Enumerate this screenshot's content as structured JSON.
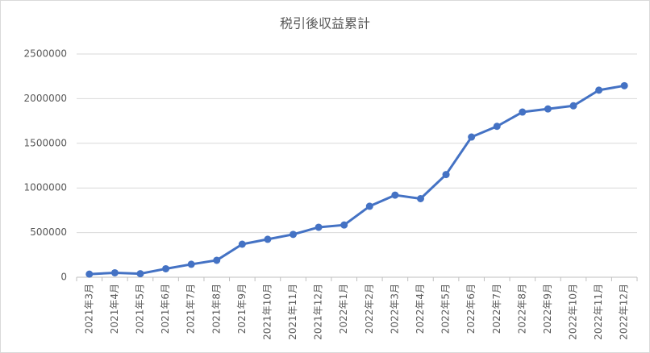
{
  "chart_data": {
    "type": "line",
    "title": "税引後収益累計",
    "categories": [
      "2021年3月",
      "2021年4月",
      "2021年5月",
      "2021年6月",
      "2021年7月",
      "2021年8月",
      "2021年9月",
      "2021年10月",
      "2021年11月",
      "2021年12月",
      "2022年1月",
      "2022年2月",
      "2022年3月",
      "2022年4月",
      "2022年5月",
      "2022年6月",
      "2022年7月",
      "2022年8月",
      "2022年9月",
      "2022年10月",
      "2022年11月",
      "2022年12月"
    ],
    "values": [
      35000,
      50000,
      40000,
      95000,
      145000,
      190000,
      370000,
      425000,
      480000,
      560000,
      585000,
      795000,
      920000,
      880000,
      1150000,
      1570000,
      1690000,
      1850000,
      1885000,
      1920000,
      2095000,
      2145000
    ],
    "color": "#4472c4",
    "ylim": [
      0,
      2500000
    ],
    "yticks": [
      0,
      500000,
      1000000,
      1500000,
      2000000,
      2500000
    ],
    "grid": true
  }
}
